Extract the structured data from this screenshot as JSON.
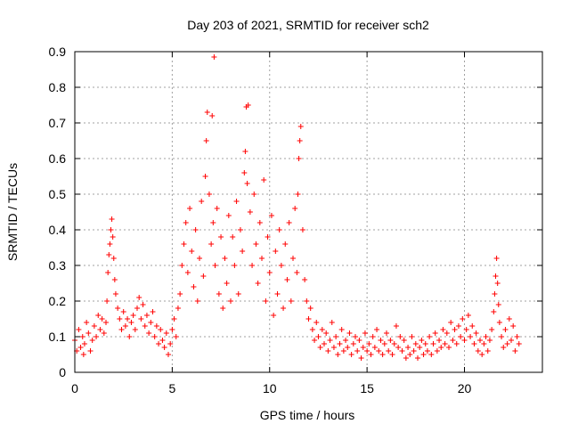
{
  "chart_data": {
    "type": "scatter",
    "title": "Day 203 of 2021, SRMTID for receiver sch2",
    "xlabel": "GPS time / hours",
    "ylabel": "SRMTID / TECUs",
    "xlim": [
      0,
      24
    ],
    "ylim": [
      0,
      0.9
    ],
    "xticks": [
      0,
      5,
      10,
      15,
      20
    ],
    "yticks": [
      0,
      0.1,
      0.2,
      0.3,
      0.4,
      0.5,
      0.6,
      0.7,
      0.8,
      0.9
    ],
    "xtick_labels": [
      "0",
      "5",
      "10",
      "15",
      "20"
    ],
    "ytick_labels": [
      "0",
      "0.1",
      "0.2",
      "0.3",
      "0.4",
      "0.5",
      "0.6",
      "0.7",
      "0.8",
      "0.9"
    ],
    "grid": true,
    "marker": "+",
    "color": "#ff0000",
    "series": [
      {
        "name": "sch2",
        "points": [
          [
            0.0,
            0.09
          ],
          [
            0.1,
            0.06
          ],
          [
            0.2,
            0.12
          ],
          [
            0.3,
            0.07
          ],
          [
            0.4,
            0.1
          ],
          [
            0.45,
            0.05
          ],
          [
            0.5,
            0.08
          ],
          [
            0.6,
            0.14
          ],
          [
            0.7,
            0.11
          ],
          [
            0.8,
            0.06
          ],
          [
            0.9,
            0.09
          ],
          [
            1.0,
            0.13
          ],
          [
            1.1,
            0.1
          ],
          [
            1.2,
            0.16
          ],
          [
            1.3,
            0.12
          ],
          [
            1.4,
            0.15
          ],
          [
            1.5,
            0.11
          ],
          [
            1.6,
            0.14
          ],
          [
            1.65,
            0.2
          ],
          [
            1.7,
            0.28
          ],
          [
            1.75,
            0.33
          ],
          [
            1.8,
            0.36
          ],
          [
            1.85,
            0.4
          ],
          [
            1.9,
            0.43
          ],
          [
            1.95,
            0.38
          ],
          [
            2.0,
            0.32
          ],
          [
            2.05,
            0.26
          ],
          [
            2.1,
            0.22
          ],
          [
            2.2,
            0.18
          ],
          [
            2.3,
            0.15
          ],
          [
            2.4,
            0.12
          ],
          [
            2.5,
            0.17
          ],
          [
            2.6,
            0.13
          ],
          [
            2.7,
            0.15
          ],
          [
            2.8,
            0.1
          ],
          [
            2.9,
            0.14
          ],
          [
            3.0,
            0.16
          ],
          [
            3.1,
            0.12
          ],
          [
            3.2,
            0.18
          ],
          [
            3.3,
            0.21
          ],
          [
            3.4,
            0.15
          ],
          [
            3.5,
            0.19
          ],
          [
            3.6,
            0.13
          ],
          [
            3.7,
            0.16
          ],
          [
            3.8,
            0.11
          ],
          [
            3.9,
            0.14
          ],
          [
            4.0,
            0.17
          ],
          [
            4.1,
            0.1
          ],
          [
            4.2,
            0.13
          ],
          [
            4.3,
            0.08
          ],
          [
            4.4,
            0.12
          ],
          [
            4.5,
            0.09
          ],
          [
            4.6,
            0.07
          ],
          [
            4.7,
            0.11
          ],
          [
            4.8,
            0.05
          ],
          [
            4.9,
            0.08
          ],
          [
            5.0,
            0.12
          ],
          [
            5.1,
            0.15
          ],
          [
            5.2,
            0.1
          ],
          [
            5.3,
            0.18
          ],
          [
            5.4,
            0.22
          ],
          [
            5.5,
            0.3
          ],
          [
            5.6,
            0.36
          ],
          [
            5.7,
            0.42
          ],
          [
            5.8,
            0.28
          ],
          [
            5.9,
            0.46
          ],
          [
            6.0,
            0.34
          ],
          [
            6.1,
            0.24
          ],
          [
            6.2,
            0.4
          ],
          [
            6.3,
            0.2
          ],
          [
            6.4,
            0.32
          ],
          [
            6.5,
            0.48
          ],
          [
            6.6,
            0.27
          ],
          [
            6.7,
            0.55
          ],
          [
            6.75,
            0.65
          ],
          [
            6.8,
            0.73
          ],
          [
            6.9,
            0.5
          ],
          [
            7.0,
            0.36
          ],
          [
            7.05,
            0.72
          ],
          [
            7.1,
            0.42
          ],
          [
            7.15,
            0.885
          ],
          [
            7.2,
            0.3
          ],
          [
            7.3,
            0.46
          ],
          [
            7.4,
            0.22
          ],
          [
            7.5,
            0.38
          ],
          [
            7.6,
            0.18
          ],
          [
            7.7,
            0.32
          ],
          [
            7.8,
            0.25
          ],
          [
            7.9,
            0.44
          ],
          [
            8.0,
            0.2
          ],
          [
            8.1,
            0.38
          ],
          [
            8.2,
            0.3
          ],
          [
            8.3,
            0.48
          ],
          [
            8.4,
            0.22
          ],
          [
            8.5,
            0.4
          ],
          [
            8.6,
            0.34
          ],
          [
            8.7,
            0.56
          ],
          [
            8.75,
            0.62
          ],
          [
            8.8,
            0.745
          ],
          [
            8.85,
            0.53
          ],
          [
            8.9,
            0.75
          ],
          [
            9.0,
            0.45
          ],
          [
            9.1,
            0.3
          ],
          [
            9.2,
            0.5
          ],
          [
            9.3,
            0.36
          ],
          [
            9.4,
            0.25
          ],
          [
            9.5,
            0.42
          ],
          [
            9.6,
            0.32
          ],
          [
            9.7,
            0.54
          ],
          [
            9.8,
            0.2
          ],
          [
            9.9,
            0.38
          ],
          [
            10.0,
            0.28
          ],
          [
            10.1,
            0.44
          ],
          [
            10.2,
            0.16
          ],
          [
            10.3,
            0.34
          ],
          [
            10.4,
            0.22
          ],
          [
            10.5,
            0.4
          ],
          [
            10.6,
            0.3
          ],
          [
            10.7,
            0.18
          ],
          [
            10.8,
            0.36
          ],
          [
            10.9,
            0.26
          ],
          [
            11.0,
            0.42
          ],
          [
            11.1,
            0.2
          ],
          [
            11.2,
            0.32
          ],
          [
            11.3,
            0.46
          ],
          [
            11.4,
            0.28
          ],
          [
            11.45,
            0.5
          ],
          [
            11.5,
            0.6
          ],
          [
            11.55,
            0.65
          ],
          [
            11.6,
            0.69
          ],
          [
            11.7,
            0.4
          ],
          [
            11.8,
            0.26
          ],
          [
            11.9,
            0.2
          ],
          [
            12.0,
            0.15
          ],
          [
            12.1,
            0.18
          ],
          [
            12.2,
            0.12
          ],
          [
            12.3,
            0.09
          ],
          [
            12.4,
            0.14
          ],
          [
            12.5,
            0.1
          ],
          [
            12.6,
            0.07
          ],
          [
            12.7,
            0.12
          ],
          [
            12.8,
            0.08
          ],
          [
            12.9,
            0.11
          ],
          [
            13.0,
            0.06
          ],
          [
            13.1,
            0.09
          ],
          [
            13.2,
            0.14
          ],
          [
            13.3,
            0.07
          ],
          [
            13.4,
            0.1
          ],
          [
            13.5,
            0.05
          ],
          [
            13.6,
            0.08
          ],
          [
            13.7,
            0.12
          ],
          [
            13.8,
            0.06
          ],
          [
            13.9,
            0.09
          ],
          [
            14.0,
            0.07
          ],
          [
            14.1,
            0.11
          ],
          [
            14.2,
            0.05
          ],
          [
            14.3,
            0.08
          ],
          [
            14.4,
            0.1
          ],
          [
            14.5,
            0.06
          ],
          [
            14.6,
            0.09
          ],
          [
            14.7,
            0.04
          ],
          [
            14.8,
            0.07
          ],
          [
            14.9,
            0.11
          ],
          [
            15.0,
            0.06
          ],
          [
            15.1,
            0.08
          ],
          [
            15.2,
            0.05
          ],
          [
            15.3,
            0.1
          ],
          [
            15.4,
            0.07
          ],
          [
            15.5,
            0.12
          ],
          [
            15.6,
            0.06
          ],
          [
            15.7,
            0.09
          ],
          [
            15.8,
            0.05
          ],
          [
            15.9,
            0.08
          ],
          [
            16.0,
            0.11
          ],
          [
            16.1,
            0.06
          ],
          [
            16.2,
            0.09
          ],
          [
            16.3,
            0.05
          ],
          [
            16.4,
            0.08
          ],
          [
            16.5,
            0.13
          ],
          [
            16.6,
            0.07
          ],
          [
            16.7,
            0.1
          ],
          [
            16.8,
            0.06
          ],
          [
            16.9,
            0.09
          ],
          [
            17.0,
            0.04
          ],
          [
            17.1,
            0.07
          ],
          [
            17.2,
            0.05
          ],
          [
            17.3,
            0.1
          ],
          [
            17.4,
            0.06
          ],
          [
            17.5,
            0.08
          ],
          [
            17.6,
            0.04
          ],
          [
            17.7,
            0.07
          ],
          [
            17.8,
            0.09
          ],
          [
            17.9,
            0.05
          ],
          [
            18.0,
            0.08
          ],
          [
            18.1,
            0.06
          ],
          [
            18.2,
            0.1
          ],
          [
            18.3,
            0.05
          ],
          [
            18.4,
            0.08
          ],
          [
            18.5,
            0.11
          ],
          [
            18.6,
            0.06
          ],
          [
            18.7,
            0.09
          ],
          [
            18.8,
            0.07
          ],
          [
            18.9,
            0.12
          ],
          [
            19.0,
            0.08
          ],
          [
            19.1,
            0.11
          ],
          [
            19.2,
            0.07
          ],
          [
            19.3,
            0.14
          ],
          [
            19.4,
            0.09
          ],
          [
            19.5,
            0.12
          ],
          [
            19.6,
            0.08
          ],
          [
            19.7,
            0.13
          ],
          [
            19.8,
            0.1
          ],
          [
            19.9,
            0.15
          ],
          [
            20.0,
            0.09
          ],
          [
            20.1,
            0.12
          ],
          [
            20.2,
            0.16
          ],
          [
            20.3,
            0.1
          ],
          [
            20.4,
            0.13
          ],
          [
            20.5,
            0.08
          ],
          [
            20.6,
            0.11
          ],
          [
            20.7,
            0.06
          ],
          [
            20.8,
            0.09
          ],
          [
            20.9,
            0.05
          ],
          [
            21.0,
            0.08
          ],
          [
            21.1,
            0.1
          ],
          [
            21.2,
            0.06
          ],
          [
            21.3,
            0.09
          ],
          [
            21.4,
            0.12
          ],
          [
            21.5,
            0.17
          ],
          [
            21.55,
            0.22
          ],
          [
            21.6,
            0.27
          ],
          [
            21.65,
            0.32
          ],
          [
            21.7,
            0.25
          ],
          [
            21.75,
            0.19
          ],
          [
            21.8,
            0.14
          ],
          [
            21.9,
            0.1
          ],
          [
            22.0,
            0.07
          ],
          [
            22.1,
            0.12
          ],
          [
            22.2,
            0.08
          ],
          [
            22.3,
            0.15
          ],
          [
            22.4,
            0.09
          ],
          [
            22.5,
            0.13
          ],
          [
            22.6,
            0.06
          ],
          [
            22.7,
            0.1
          ],
          [
            22.8,
            0.08
          ]
        ]
      }
    ]
  }
}
